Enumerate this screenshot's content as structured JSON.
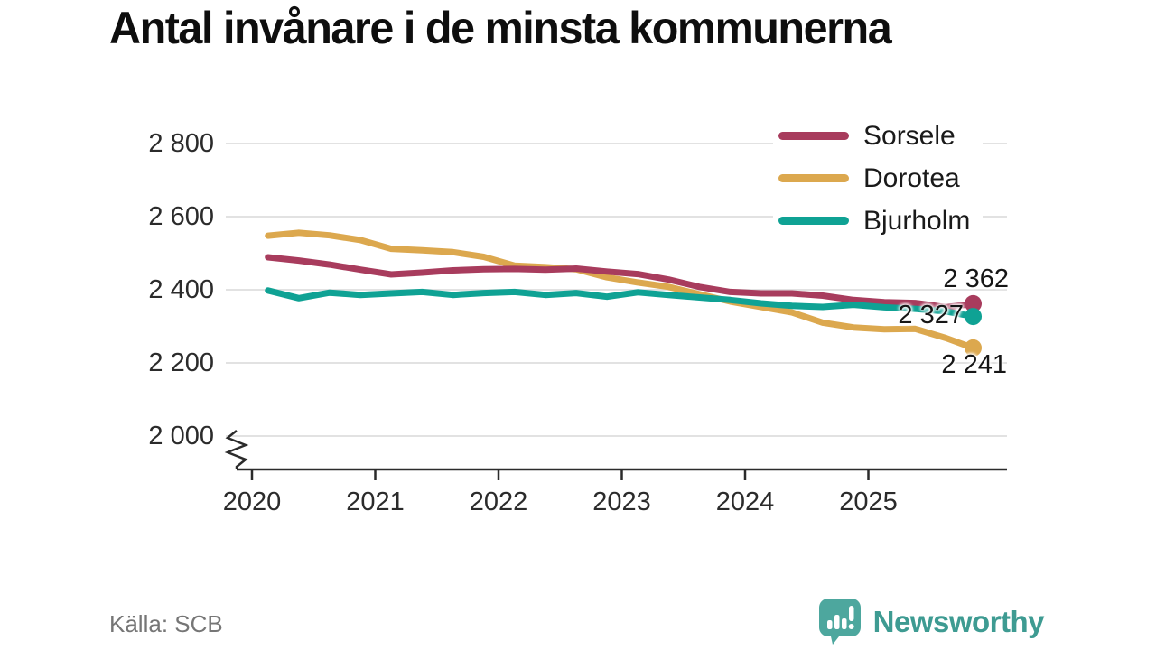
{
  "title": "Antal invånare i de minsta kommunerna",
  "source": "Källa: SCB",
  "branding": {
    "name": "Newsworthy",
    "color": "#3E9B92",
    "logo_color": "#4DA79E"
  },
  "colors": {
    "grid": "#e2e2e2",
    "axis": "#2b2b2b",
    "tick_text": "#2b2b2b",
    "label_text": "#161616"
  },
  "chart_data": {
    "type": "line",
    "title": "Antal invånare i de minsta kommunerna",
    "xlabel": "",
    "ylabel": "",
    "grid": true,
    "y_axis_break": true,
    "legend_position": "top-right",
    "xlim": [
      2020,
      2026.1
    ],
    "ylim": [
      2000,
      2800
    ],
    "x": [
      2020.13,
      2020.38,
      2020.63,
      2020.88,
      2021.13,
      2021.38,
      2021.63,
      2021.88,
      2022.13,
      2022.38,
      2022.63,
      2022.88,
      2023.13,
      2023.38,
      2023.63,
      2023.88,
      2024.13,
      2024.38,
      2024.63,
      2024.88,
      2025.13,
      2025.38,
      2025.63,
      2025.85
    ],
    "series": [
      {
        "name": "Sorsele",
        "color": "#A83C5D",
        "end_value": 2362,
        "end_label": "2 362",
        "values": [
          2489,
          2480,
          2469,
          2455,
          2442,
          2447,
          2453,
          2456,
          2457,
          2455,
          2458,
          2450,
          2443,
          2428,
          2408,
          2394,
          2390,
          2390,
          2384,
          2372,
          2366,
          2364,
          2352,
          2362
        ]
      },
      {
        "name": "Dorotea",
        "color": "#DCA84E",
        "end_value": 2241,
        "end_label": "2 241",
        "values": [
          2548,
          2556,
          2549,
          2536,
          2512,
          2508,
          2503,
          2490,
          2466,
          2462,
          2456,
          2434,
          2420,
          2408,
          2388,
          2368,
          2353,
          2338,
          2310,
          2297,
          2292,
          2293,
          2268,
          2241
        ]
      },
      {
        "name": "Bjurholm",
        "color": "#0FA294",
        "end_value": 2327,
        "end_label": "2 327",
        "values": [
          2398,
          2377,
          2392,
          2386,
          2390,
          2394,
          2386,
          2391,
          2394,
          2386,
          2391,
          2381,
          2393,
          2386,
          2379,
          2372,
          2363,
          2356,
          2353,
          2359,
          2352,
          2348,
          2341,
          2327
        ]
      }
    ],
    "yticks": [
      {
        "value": 2000,
        "label": "2 000"
      },
      {
        "value": 2200,
        "label": "2 200"
      },
      {
        "value": 2400,
        "label": "2 400"
      },
      {
        "value": 2600,
        "label": "2 600"
      },
      {
        "value": 2800,
        "label": "2 800"
      }
    ],
    "xticks": [
      {
        "value": 2020,
        "label": "2020"
      },
      {
        "value": 2021,
        "label": "2021"
      },
      {
        "value": 2022,
        "label": "2022"
      },
      {
        "value": 2023,
        "label": "2023"
      },
      {
        "value": 2024,
        "label": "2024"
      },
      {
        "value": 2025,
        "label": "2025"
      }
    ]
  }
}
